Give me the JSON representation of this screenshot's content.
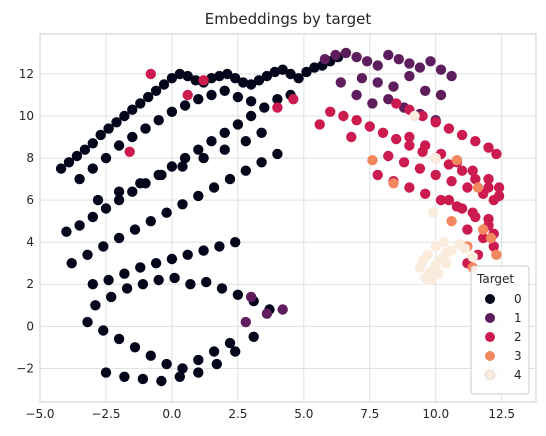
{
  "chart_data": {
    "type": "scatter",
    "title": "Embeddings by target",
    "xlabel": "",
    "ylabel": "",
    "xlim": [
      -5.0,
      13.8
    ],
    "ylim": [
      -3.6,
      13.9
    ],
    "xticks": [
      -5.0,
      -2.5,
      0.0,
      2.5,
      5.0,
      7.5,
      10.0,
      12.5
    ],
    "xtick_labels": [
      "−5.0",
      "−2.5",
      "0.0",
      "2.5",
      "5.0",
      "7.5",
      "10.0",
      "12.5"
    ],
    "yticks": [
      -2,
      0,
      2,
      4,
      6,
      8,
      10,
      12
    ],
    "ytick_labels": [
      "−2",
      "0",
      "2",
      "4",
      "6",
      "8",
      "10",
      "12"
    ],
    "grid": true,
    "legend": {
      "title": "Target",
      "placement": "lower-right",
      "entries": [
        "0",
        "1",
        "2",
        "3",
        "4"
      ]
    },
    "series": [
      {
        "name": "0",
        "color": "#03051a",
        "x": [
          -4.2,
          -3.9,
          -3.6,
          -3.3,
          -3.0,
          -2.7,
          -2.4,
          -2.1,
          -1.8,
          -1.5,
          -1.2,
          -0.9,
          -0.6,
          -0.3,
          0.0,
          0.3,
          0.6,
          0.9,
          1.2,
          1.5,
          1.8,
          2.1,
          2.4,
          2.7,
          3.0,
          3.3,
          3.6,
          3.9,
          4.2,
          4.5,
          4.8,
          5.1,
          5.4,
          5.7,
          6.0,
          6.3,
          -3.5,
          -3.0,
          -2.5,
          -2.0,
          -1.5,
          -1.0,
          -0.5,
          0.0,
          0.5,
          1.0,
          1.5,
          2.0,
          2.5,
          3.0,
          -2.8,
          -2.0,
          -1.2,
          -0.4,
          0.4,
          1.2,
          2.0,
          2.8,
          3.4,
          -4.0,
          -3.5,
          -3.0,
          -2.5,
          -2.0,
          -1.5,
          -1.0,
          -0.5,
          0.0,
          0.5,
          1.0,
          1.5,
          2.0,
          2.5,
          3.0,
          3.5,
          4.0,
          4.5,
          -3.8,
          -3.2,
          -2.6,
          -2.0,
          -1.4,
          -0.8,
          -0.2,
          0.4,
          1.0,
          1.6,
          2.2,
          2.8,
          3.4,
          4.0,
          -3.0,
          -2.4,
          -1.8,
          -1.2,
          -0.6,
          0.0,
          0.6,
          1.2,
          1.8,
          2.4,
          -2.9,
          -2.3,
          -1.7,
          -1.1,
          -0.5,
          0.1,
          0.7,
          1.3,
          1.9,
          2.5,
          3.1,
          3.7,
          -3.2,
          -2.6,
          -2.0,
          -1.4,
          -0.8,
          -0.2,
          0.4,
          1.0,
          1.6,
          2.2,
          -2.5,
          -1.8,
          -1.1,
          -0.4,
          0.3,
          1.0,
          1.7,
          2.4,
          3.1
        ],
        "y": [
          7.5,
          7.8,
          8.1,
          8.4,
          8.7,
          9.1,
          9.4,
          9.7,
          10.0,
          10.3,
          10.6,
          10.9,
          11.2,
          11.5,
          11.8,
          12.0,
          11.9,
          11.7,
          11.6,
          11.8,
          11.9,
          12.0,
          11.8,
          11.6,
          11.5,
          11.7,
          11.9,
          12.1,
          12.2,
          12.0,
          11.8,
          12.1,
          12.3,
          12.4,
          12.6,
          12.8,
          7.0,
          7.5,
          8.0,
          8.6,
          9.0,
          9.4,
          9.8,
          10.2,
          10.5,
          10.8,
          11.0,
          11.2,
          10.9,
          10.7,
          6.0,
          6.4,
          6.8,
          7.2,
          7.6,
          8.0,
          8.4,
          8.8,
          9.2,
          4.5,
          4.8,
          5.2,
          5.6,
          6.0,
          6.4,
          6.8,
          7.2,
          7.6,
          8.0,
          8.4,
          8.8,
          9.2,
          9.6,
          10.0,
          10.4,
          10.8,
          11.0,
          3.0,
          3.4,
          3.8,
          4.2,
          4.6,
          5.0,
          5.4,
          5.8,
          6.2,
          6.6,
          7.0,
          7.4,
          7.8,
          8.2,
          2.0,
          2.2,
          2.5,
          2.8,
          3.0,
          3.2,
          3.4,
          3.6,
          3.8,
          4.0,
          1.0,
          1.4,
          1.8,
          2.0,
          2.2,
          2.3,
          2.0,
          2.1,
          1.8,
          1.5,
          1.2,
          0.8,
          0.2,
          -0.2,
          -0.6,
          -1.0,
          -1.4,
          -1.8,
          -2.0,
          -1.6,
          -1.2,
          -0.8,
          -2.2,
          -2.4,
          -2.5,
          -2.6,
          -2.4,
          -2.2,
          -1.8,
          -1.2,
          -0.5
        ]
      },
      {
        "name": "1",
        "color": "#5e1d5c",
        "x": [
          5.8,
          6.2,
          6.6,
          7.0,
          7.4,
          7.8,
          8.2,
          8.6,
          9.0,
          9.4,
          9.8,
          10.2,
          10.6,
          7.2,
          7.8,
          8.4,
          9.0,
          9.6,
          10.2,
          6.4,
          7.0,
          7.6,
          8.2,
          8.8,
          9.4,
          10.0,
          3.6,
          4.2,
          3.0,
          2.8
        ],
        "y": [
          12.7,
          12.9,
          13.0,
          12.8,
          12.6,
          12.4,
          12.9,
          12.7,
          12.5,
          12.3,
          12.6,
          12.2,
          11.9,
          11.8,
          11.6,
          11.4,
          11.9,
          11.2,
          11.0,
          11.6,
          11.0,
          10.6,
          10.8,
          10.4,
          10.1,
          9.8,
          0.6,
          0.8,
          1.4,
          0.2
        ]
      },
      {
        "name": "2",
        "color": "#cb1b4f",
        "x": [
          6.0,
          6.5,
          7.0,
          7.5,
          8.0,
          8.5,
          9.0,
          9.5,
          10.0,
          10.5,
          11.0,
          11.5,
          12.0,
          12.4,
          8.5,
          9.0,
          9.5,
          10.0,
          10.5,
          11.0,
          11.5,
          12.0,
          12.3,
          9.0,
          9.6,
          10.2,
          10.8,
          11.4,
          12.0,
          12.4,
          8.2,
          8.8,
          9.4,
          10.0,
          10.6,
          11.2,
          11.8,
          12.2,
          7.8,
          8.4,
          9.0,
          9.6,
          10.2,
          10.8,
          11.4,
          12.0,
          10.5,
          11.0,
          11.5,
          12.0,
          12.2,
          11.2,
          11.8,
          12.2,
          11.6,
          11.2,
          5.6,
          6.8,
          4.0,
          4.6,
          -1.6,
          1.2,
          0.6,
          -0.8
        ],
        "y": [
          10.2,
          10.0,
          9.8,
          9.5,
          9.2,
          8.9,
          8.6,
          8.3,
          8.0,
          7.7,
          7.4,
          7.0,
          6.6,
          6.2,
          10.6,
          10.3,
          10.0,
          9.7,
          9.4,
          9.1,
          8.8,
          8.5,
          8.2,
          9.0,
          8.6,
          8.2,
          7.8,
          7.4,
          7.0,
          6.6,
          8.1,
          7.8,
          7.5,
          7.2,
          6.9,
          6.6,
          6.3,
          6.0,
          7.2,
          6.9,
          6.6,
          6.3,
          6.0,
          5.7,
          5.4,
          5.1,
          6.0,
          5.6,
          5.2,
          4.8,
          4.4,
          4.6,
          4.2,
          3.8,
          3.4,
          3.0,
          9.6,
          9.0,
          10.4,
          10.8,
          8.3,
          11.7,
          11.0,
          12.0
        ]
      },
      {
        "name": "3",
        "color": "#f3875f",
        "x": [
          7.6,
          8.4,
          10.8,
          11.6,
          11.8,
          12.1,
          11.2,
          10.6,
          12.3,
          11.4
        ],
        "y": [
          7.9,
          6.8,
          7.9,
          6.6,
          4.6,
          4.2,
          3.8,
          5.0,
          3.4,
          2.8
        ]
      },
      {
        "name": "4",
        "color": "#faebdd",
        "x": [
          9.6,
          9.8,
          10.0,
          10.2,
          10.4,
          9.4,
          9.7,
          10.0,
          10.3,
          9.5,
          9.8,
          10.1,
          10.4,
          10.6,
          10.9,
          11.1,
          11.4,
          9.9,
          10.0,
          9.2
        ],
        "y": [
          2.3,
          2.6,
          2.9,
          3.2,
          3.5,
          2.8,
          3.4,
          3.8,
          4.0,
          3.1,
          2.2,
          2.5,
          3.0,
          3.6,
          3.9,
          3.7,
          3.3,
          5.4,
          8.0,
          10.0
        ]
      }
    ]
  }
}
